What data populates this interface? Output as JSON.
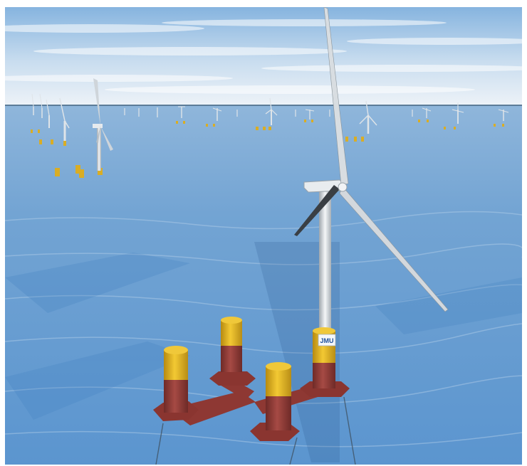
{
  "scene": {
    "description_hidden": "",
    "logo_text": "JMU",
    "colors": {
      "sky_top": "#7fb0de",
      "sky_horizon": "#eef3f8",
      "sea_far": "#7aa8d4",
      "sea_near": "#5a93cf",
      "float_column": "#e6b822",
      "float_base": "#9b3f3a",
      "tower": "#e9eef2",
      "blade": "#d5dadf"
    },
    "icons": [
      "wind-turbine",
      "floating-platform"
    ]
  }
}
